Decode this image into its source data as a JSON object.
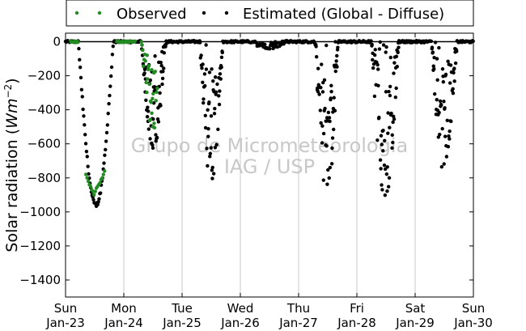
{
  "chart_data": {
    "type": "scatter",
    "ylabel": "Solar radiation (Wm⁻²)",
    "ylim": [
      -1500,
      50
    ],
    "xlim": [
      0,
      7
    ],
    "yticks": [
      0,
      -200,
      -400,
      -600,
      -800,
      -1000,
      -1200,
      -1400
    ],
    "xticks": [
      {
        "x": 0,
        "day": "Sun",
        "date": "Jan-23"
      },
      {
        "x": 1,
        "day": "Mon",
        "date": "Jan-24"
      },
      {
        "x": 2,
        "day": "Tue",
        "date": "Jan-25"
      },
      {
        "x": 3,
        "day": "Wed",
        "date": "Jan-26"
      },
      {
        "x": 4,
        "day": "Thu",
        "date": "Jan-27"
      },
      {
        "x": 5,
        "day": "Fri",
        "date": "Jan-28"
      },
      {
        "x": 6,
        "day": "Sat",
        "date": "Jan-29"
      },
      {
        "x": 7,
        "day": "Sun",
        "date": "Jan-30"
      }
    ],
    "vertical_gridlines": true,
    "legend_position": "top",
    "watermark": [
      "Grupo de Micrometeorologia",
      "IAG / USP"
    ],
    "series": [
      {
        "name": "Observed",
        "color": "#228b22",
        "days": [
          {
            "day": 0,
            "start": 0.1,
            "end": 0.7,
            "peak": -900,
            "cloudiness": 0.0,
            "segment": [
              0.1,
              0.2,
              0.36,
              0.7
            ]
          },
          {
            "day": 1,
            "start": 0.0,
            "end": 0.6,
            "peak": -620,
            "cloudiness": 0.6,
            "segment": [
              0.0,
              0.2,
              0.35,
              0.6
            ]
          }
        ],
        "x": [
          0.35,
          0.37,
          0.39,
          0.41,
          0.43,
          0.45,
          0.47,
          0.49,
          0.51,
          0.53,
          0.55,
          0.57,
          0.59,
          0.61,
          0.63,
          0.65,
          0.67,
          1.4,
          1.42,
          1.44,
          1.46,
          1.48,
          1.5,
          1.52
        ],
        "y": [
          -780,
          -800,
          -820,
          -840,
          -850,
          -870,
          -880,
          -900,
          -880,
          -860,
          -850,
          -840,
          -830,
          -810,
          -800,
          -780,
          -760,
          -80,
          -150,
          -250,
          -350,
          -420,
          -500,
          -480
        ]
      },
      {
        "name": "Estimated (Global - Diffuse)",
        "color": "#000000",
        "days": [
          {
            "day": 0,
            "start": 0.22,
            "end": 0.82,
            "peak": -960,
            "cloudiness": 0.0
          },
          {
            "day": 1,
            "start": 1.3,
            "end": 1.72,
            "peak": -620,
            "cloudiness": 0.6
          },
          {
            "day": 2,
            "start": 2.3,
            "end": 2.7,
            "peak": -820,
            "cloudiness": 0.85
          },
          {
            "day": 3,
            "start": 3.2,
            "end": 3.8,
            "peak": -30,
            "cloudiness": 0.3
          },
          {
            "day": 4,
            "start": 4.28,
            "end": 4.68,
            "peak": -950,
            "cloudiness": 0.9
          },
          {
            "day": 5,
            "start": 5.25,
            "end": 5.72,
            "peak": -910,
            "cloudiness": 0.7
          },
          {
            "day": 6,
            "start": 6.28,
            "end": 6.72,
            "peak": -770,
            "cloudiness": 0.85
          }
        ]
      }
    ]
  }
}
